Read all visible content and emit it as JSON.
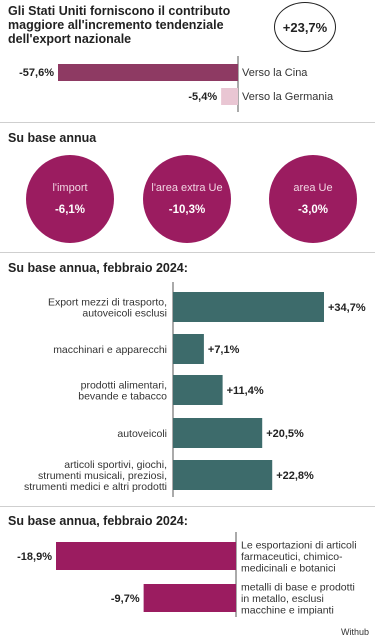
{
  "header": {
    "title_lines": [
      "Gli Stati Uniti forniscono il contributo",
      "maggiore all'incremento tendenziale",
      "dell'export nazionale"
    ],
    "total_value": "+23,7%"
  },
  "chart_data": [
    {
      "type": "bar",
      "orientation": "horizontal",
      "categories": [
        "Verso la Cina",
        "Verso la Germania"
      ],
      "values": [
        -57.6,
        -5.4
      ],
      "value_labels": [
        "-57,6%",
        "-5,4%"
      ],
      "colors": [
        "#8e3a63",
        "#e9c6d3"
      ]
    },
    {
      "type": "bubble",
      "title": "Su base annua",
      "categories": [
        "l'import",
        "l'area extra Ue",
        "area Ue"
      ],
      "values": [
        -6.1,
        -10.3,
        -3.0
      ],
      "value_labels": [
        "-6,1%",
        "-10,3%",
        "-3,0%"
      ],
      "color": "#9b1c60"
    },
    {
      "type": "bar",
      "orientation": "horizontal",
      "title": "Su base annua, febbraio 2024:",
      "categories": [
        [
          "Export mezzi di trasporto,",
          "autoveicoli esclusi"
        ],
        [
          "macchinari e apparecchi"
        ],
        [
          "prodotti alimentari,",
          "bevande e tabacco"
        ],
        [
          "autoveicoli"
        ],
        [
          "articoli sportivi, giochi,",
          "strumenti musicali, preziosi,",
          "strumenti medici e altri prodotti"
        ]
      ],
      "values": [
        34.7,
        7.1,
        11.4,
        20.5,
        22.8
      ],
      "value_labels": [
        "+34,7%",
        "+7,1%",
        "+11,4%",
        "+20,5%",
        "+22,8%"
      ],
      "color": "#3d6b6b"
    },
    {
      "type": "bar",
      "orientation": "horizontal",
      "title": "Su base annua, febbraio 2024:",
      "categories": [
        [
          "Le esportazioni di articoli",
          "farmaceutici, chimico-",
          "medicinali e botanici"
        ],
        [
          "metalli di base e prodotti",
          "in metallo, esclusi",
          "macchine e impianti"
        ]
      ],
      "values": [
        -18.9,
        -9.7
      ],
      "value_labels": [
        "-18,9%",
        "-9,7%"
      ],
      "color": "#9b1c60"
    }
  ],
  "footer": {
    "source": "Withub"
  }
}
